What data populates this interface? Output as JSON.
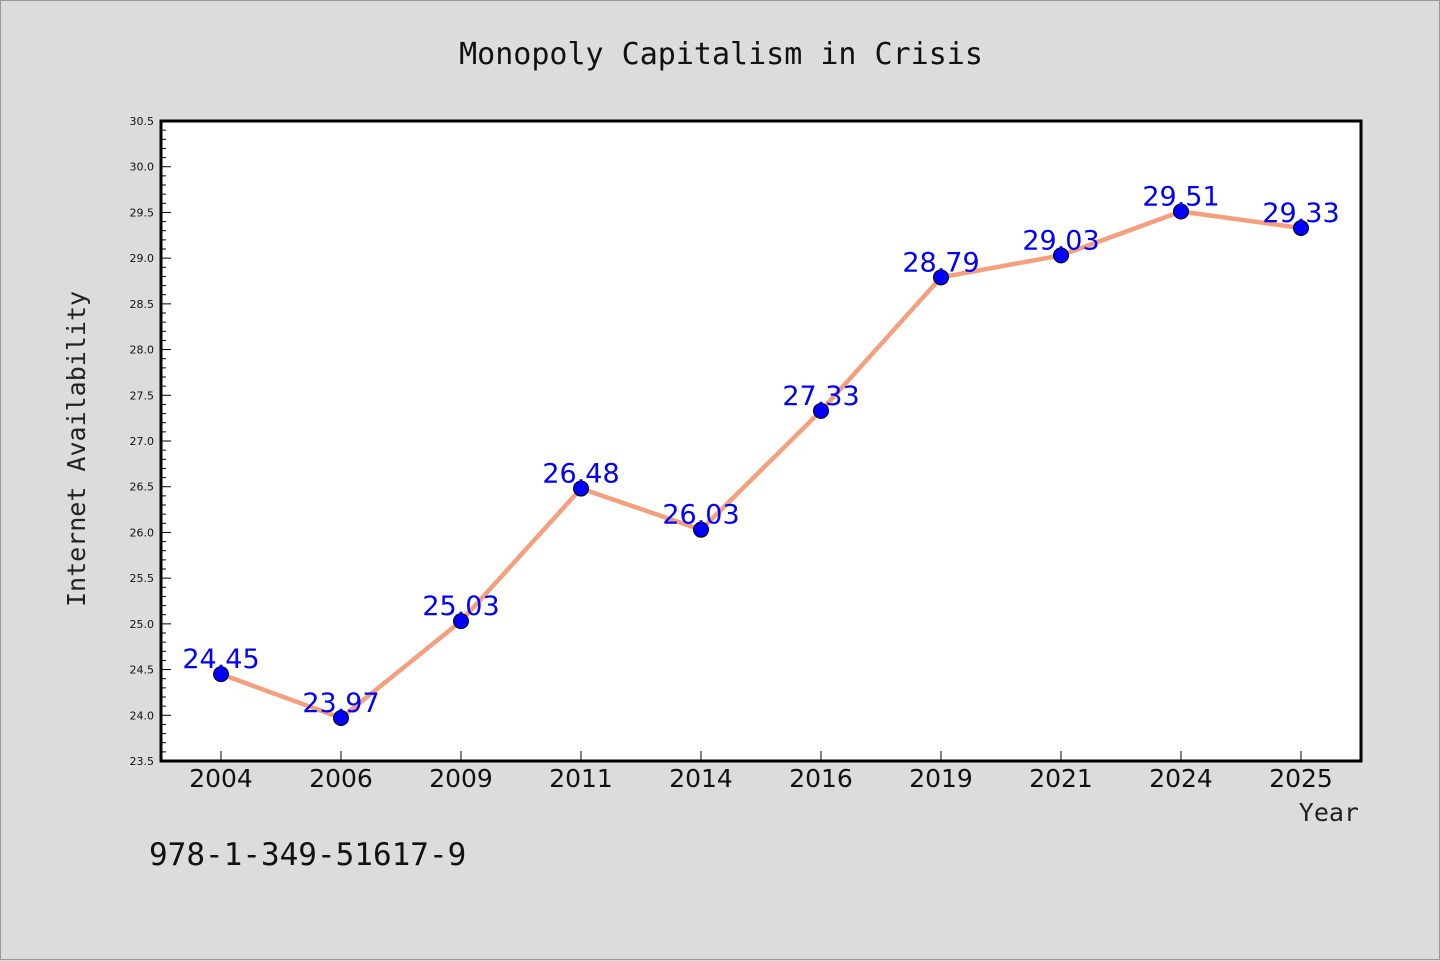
{
  "chart_data": {
    "type": "line",
    "title": "Monopoly Capitalism in Crisis",
    "xlabel": "Year",
    "ylabel": "Internet Availability",
    "categories": [
      "2004",
      "2006",
      "2009",
      "2011",
      "2014",
      "2016",
      "2019",
      "2021",
      "2024",
      "2025"
    ],
    "series": [
      {
        "values": [
          24.45,
          23.97,
          25.03,
          26.48,
          26.03,
          27.33,
          28.79,
          29.03,
          29.51,
          29.33
        ],
        "labels": [
          "24.45",
          "23.97",
          "25.03",
          "26.48",
          "26.03",
          "27.33",
          "28.79",
          "29.03",
          "29.51",
          "29.33"
        ],
        "line_color": "#f4a07f",
        "marker_color": "#0000ff"
      }
    ],
    "ylim": [
      23.5,
      30.5
    ],
    "yticks": [
      "23.5",
      "24.0",
      "24.5",
      "25.0",
      "25.5",
      "26.0",
      "26.5",
      "27.0",
      "27.5",
      "28.0",
      "28.5",
      "29.0",
      "29.5",
      "30.0",
      "30.5"
    ],
    "grid": false,
    "legend": "none"
  },
  "annotation": "978-1-349-51617-9",
  "colors": {
    "background": "#dcdcdc",
    "plot_background": "#ffffff",
    "axes": "#000000",
    "data_label": "#0000ff"
  }
}
